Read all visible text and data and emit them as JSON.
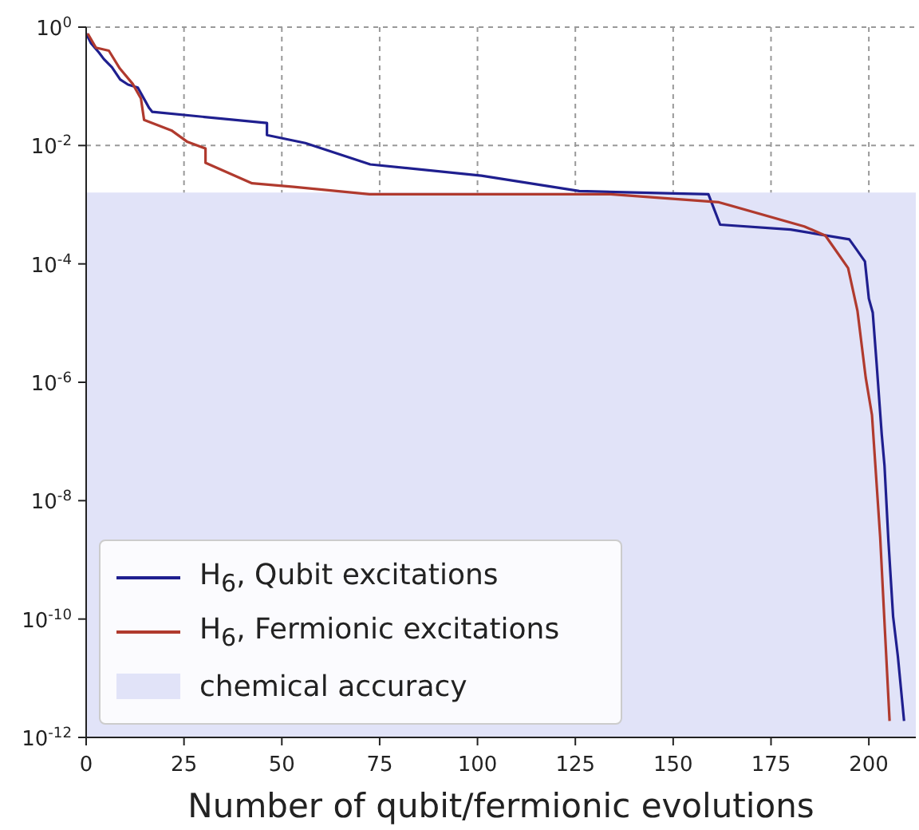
{
  "chart_data": {
    "type": "line",
    "xlabel": "Number of qubit/fermionic evolutions",
    "xlim": [
      0,
      212
    ],
    "xticks": [
      0,
      25,
      50,
      75,
      100,
      125,
      150,
      175,
      200
    ],
    "log": "y",
    "ylim": [
      1e-12,
      1
    ],
    "yticks": [
      {
        "value": 1,
        "label": "10$^{0}$"
      },
      {
        "value": 0.01,
        "label": "10$^{-2}$"
      },
      {
        "value": 0.0001,
        "label": "10$^{-4}$"
      },
      {
        "value": 1e-06,
        "label": "10$^{-6}$"
      },
      {
        "value": 1e-08,
        "label": "10$^{-8}$"
      },
      {
        "value": 1e-10,
        "label": "10$^{-10}$"
      },
      {
        "value": 1e-12,
        "label": "10$^{-12}$"
      }
    ],
    "grid": true,
    "legend": "bottom left",
    "series": [
      {
        "name": "H$_{6}$, Qubit excitations",
        "color": "#1f1f8f",
        "x": [
          0,
          1.2,
          3.3,
          4.5,
          6.6,
          8.7,
          10.7,
          13.2,
          16.1,
          16.9,
          46.2,
          46.2,
          56,
          72.6,
          101,
          126,
          159,
          162,
          180,
          195,
          197,
          199,
          200,
          201,
          202,
          203.3,
          204,
          205,
          206.2,
          207.4,
          209
        ],
        "values": [
          0.78,
          0.54,
          0.37,
          0.29,
          0.21,
          0.13,
          0.107,
          0.095,
          0.043,
          0.037,
          0.024,
          0.015,
          0.011,
          0.0048,
          0.0031,
          0.0017,
          0.0015,
          0.00046,
          0.00038,
          0.00026,
          0.00017,
          0.00011,
          2.6e-05,
          1.5e-05,
          2e-06,
          1.3e-07,
          3.9e-08,
          2.1e-09,
          1.1e-10,
          2.4e-11,
          1.9e-12
        ]
      },
      {
        "name": "H$_{6}$, Fermionic excitations",
        "color": "#b03a2e",
        "x": [
          0.4,
          2.5,
          5.8,
          8.6,
          11.9,
          14,
          14.8,
          21.8,
          25.9,
          30.5,
          30.5,
          42.4,
          53,
          72.4,
          134,
          161.7,
          183.5,
          188.9,
          191.8,
          194.7,
          197.1,
          199.2,
          200.8,
          202.9,
          204.1,
          205.3
        ],
        "values": [
          0.78,
          0.45,
          0.4,
          0.2,
          0.11,
          0.062,
          0.027,
          0.018,
          0.0115,
          0.0089,
          0.0051,
          0.0023,
          0.002,
          0.0015,
          0.0015,
          0.0011,
          0.00043,
          0.0003,
          0.00016,
          8.5e-05,
          1.6e-05,
          1.2e-06,
          2.8e-07,
          2.4e-09,
          6.5e-11,
          1.9e-12
        ]
      }
    ],
    "bands": [
      {
        "axis": "y",
        "from": 1e-12,
        "to": 0.0016,
        "label": "chemical accuracy",
        "color": "#e1e3f8"
      }
    ]
  }
}
